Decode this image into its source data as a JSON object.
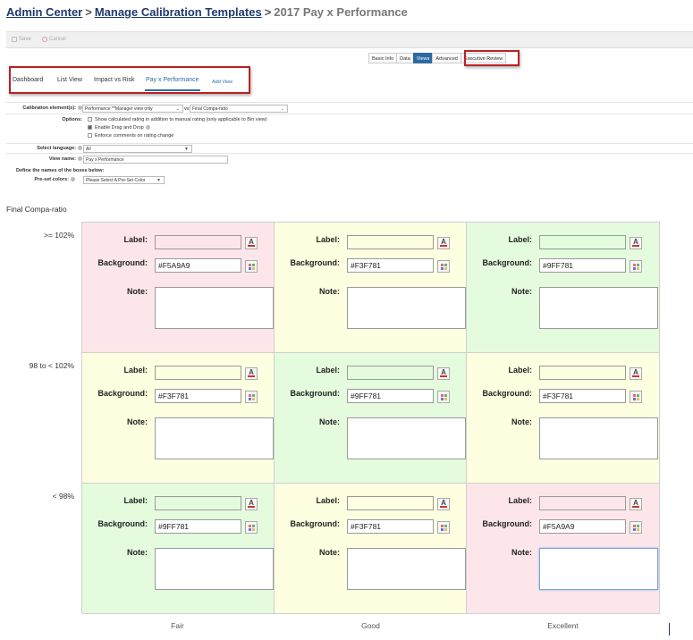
{
  "breadcrumb": {
    "admin_center": "Admin Center",
    "sep1": ">",
    "manage_templates": "Manage Calibration Templates",
    "sep2": ">",
    "current": "2017 Pay x Performance"
  },
  "toolbar": {
    "save": "Save",
    "cancel": "Cancel"
  },
  "subtabs": [
    "Basic Info",
    "Data",
    "Views",
    "Advanced",
    "Executive Review"
  ],
  "active_subtab": "Views",
  "view_tabs": [
    "Dashboard",
    "List View",
    "Impact vs Risk",
    "Pay x Performance"
  ],
  "active_view_tab": "Pay x Performance",
  "add_view": "Add View",
  "form": {
    "calibration_label": "Calibration element(s):",
    "calibration_value1": "Performance **Manager view only",
    "vs": "vs",
    "calibration_value2": "Final Compa-ratio",
    "options_label": "Options:",
    "option1": "Show calculated rating in addition to manual rating (only applicable to Bin view)",
    "option2": "Enable Drag and Drop",
    "option3": "Enforce comments on rating change",
    "language_label": "Select language:",
    "language_value": "All",
    "view_name_label": "View name:",
    "view_name_value": "Pay x Performance",
    "define_names": "Define the names of the boxes below:",
    "preset_label": "Pre-set colors:",
    "preset_value": "Please Select A Pre-Set Color"
  },
  "grid": {
    "y_title": "Final Compa-ratio",
    "row_labels": [
      ">= 102%",
      "98 to < 102%",
      "< 98%"
    ],
    "col_labels": [
      "Fair",
      "Good",
      "Excellent"
    ],
    "field_labels": {
      "label": "Label:",
      "background": "Background:",
      "note": "Note:"
    },
    "cells": [
      [
        {
          "background": "#F5A9A9",
          "color": "#fde6ea"
        },
        {
          "background": "#F3F781",
          "color": "#fefee0"
        },
        {
          "background": "#9FF781",
          "color": "#e4fbde"
        }
      ],
      [
        {
          "background": "#F3F781",
          "color": "#fefee0"
        },
        {
          "background": "#9FF781",
          "color": "#e4fbde"
        },
        {
          "background": "#F3F781",
          "color": "#fefee0"
        }
      ],
      [
        {
          "background": "#9FF781",
          "color": "#e4fbde"
        },
        {
          "background": "#F3F781",
          "color": "#fefee0"
        },
        {
          "background": "#F5A9A9",
          "color": "#fde6ea"
        }
      ]
    ]
  }
}
